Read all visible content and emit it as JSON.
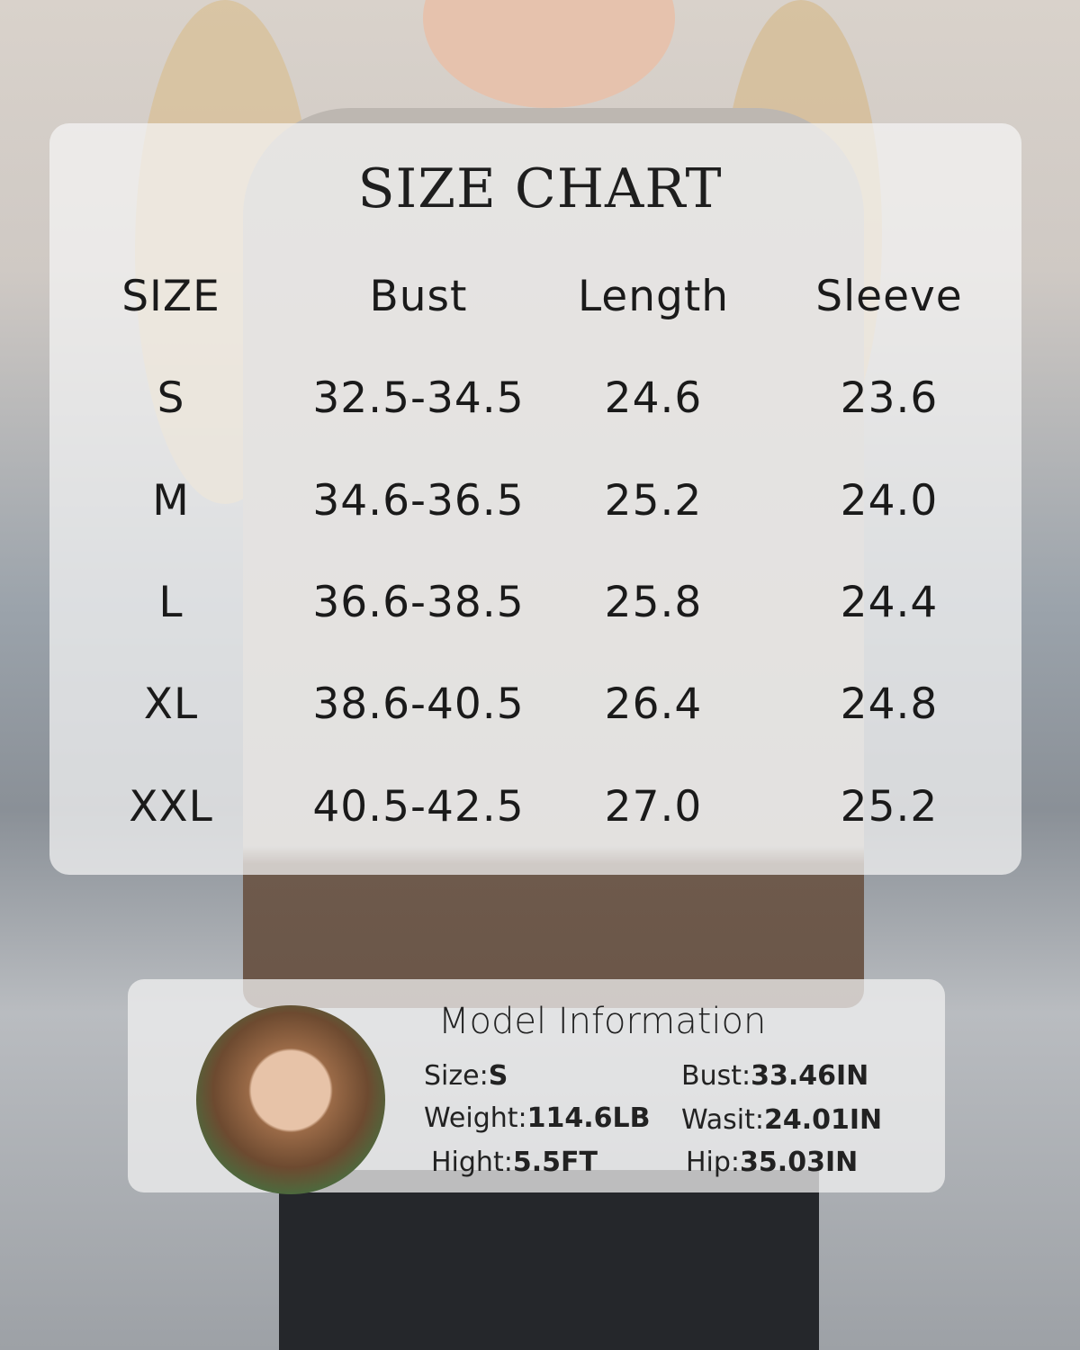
{
  "title": "SIZE CHART",
  "table": {
    "headers": [
      "SIZE",
      "Bust",
      "Length",
      "Sleeve"
    ],
    "rows": [
      [
        "S",
        "32.5-34.5",
        "24.6",
        "23.6"
      ],
      [
        "M",
        "34.6-36.5",
        "25.2",
        "24.0"
      ],
      [
        "L",
        "36.6-38.5",
        "25.8",
        "24.4"
      ],
      [
        "XL",
        "38.6-40.5",
        "26.4",
        "24.8"
      ],
      [
        "XXL",
        "40.5-42.5",
        "27.0",
        "25.2"
      ]
    ]
  },
  "model": {
    "title": "Model Information",
    "items": [
      {
        "label": "Size:",
        "value": "S"
      },
      {
        "label": "Weight:",
        "value": "114.6LB"
      },
      {
        "label": "Hight:",
        "value": "5.5FT"
      },
      {
        "label": "Bust:",
        "value": "33.46IN"
      },
      {
        "label": "Wasit:",
        "value": "24.01IN"
      },
      {
        "label": "Hip:",
        "value": "35.03IN"
      }
    ]
  }
}
